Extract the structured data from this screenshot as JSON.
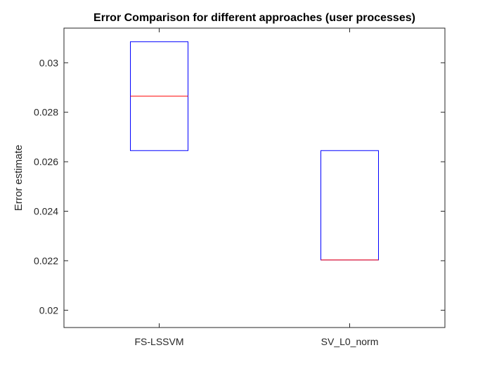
{
  "chart_data": {
    "type": "box",
    "title": "Error Comparison for different approaches (user processes)",
    "xlabel": "",
    "ylabel": "Error estimate",
    "categories": [
      "FS-LSSVM",
      "SV_L0_norm"
    ],
    "boxes": [
      {
        "name": "FS-LSSVM",
        "q1": 0.02645,
        "median": 0.02865,
        "q3": 0.03085
      },
      {
        "name": "SV_L0_norm",
        "q1": 0.02203,
        "median": 0.02203,
        "q3": 0.02645
      }
    ],
    "ylim": [
      0.0193,
      0.0314
    ],
    "yticks": [
      0.02,
      0.022,
      0.024,
      0.026,
      0.028,
      0.03
    ],
    "ytick_labels": [
      "0.02",
      "0.022",
      "0.024",
      "0.026",
      "0.028",
      "0.03"
    ],
    "grid": false,
    "colors": {
      "box": "#0000ff",
      "median": "#ff0000",
      "axis": "#262626"
    }
  }
}
